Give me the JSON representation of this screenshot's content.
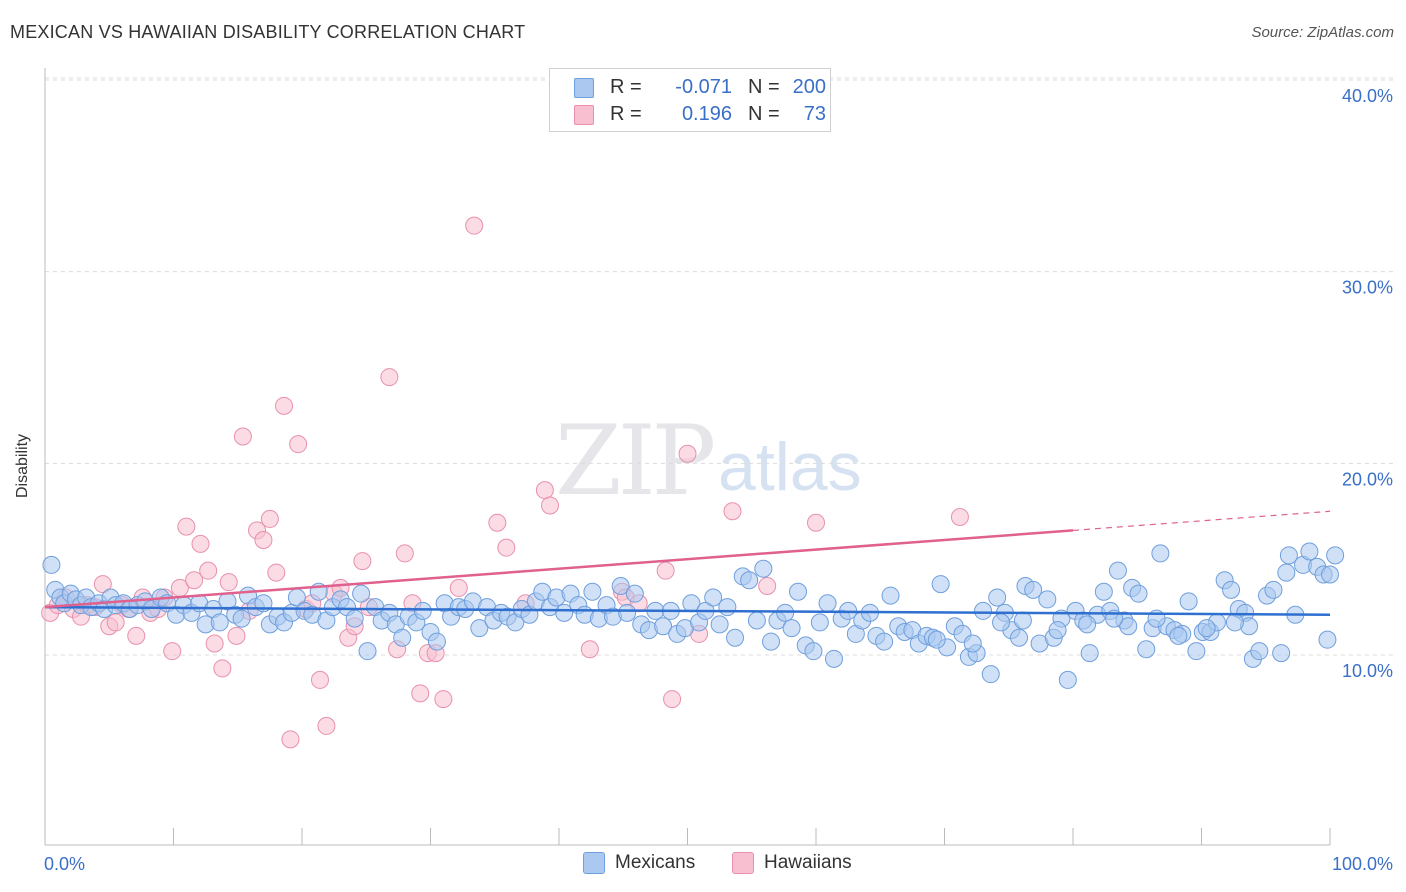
{
  "header": {
    "title": "MEXICAN VS HAWAIIAN DISABILITY CORRELATION CHART",
    "source": "Source: ZipAtlas.com"
  },
  "watermark": {
    "zip": "ZIP",
    "atlas": "atlas"
  },
  "legend": {
    "rows": [
      {
        "r_label": "R =",
        "r_value": "-0.071",
        "n_label": "N =",
        "n_value": "200",
        "color": "#aac8f0",
        "border": "#6f9fdc"
      },
      {
        "r_label": "R =",
        "r_value": "0.196",
        "n_label": "N =",
        "n_value": "73",
        "color": "#f7bfd0",
        "border": "#e890ad"
      }
    ]
  },
  "bottom_legend": {
    "mexicans": "Mexicans",
    "hawaiians": "Hawaiians"
  },
  "chart_data": {
    "type": "scatter",
    "title": "MEXICAN VS HAWAIIAN DISABILITY CORRELATION CHART",
    "xlabel": "",
    "ylabel": "Disability",
    "xlim": [
      0,
      100
    ],
    "ylim": [
      0,
      41
    ],
    "x_tick_labels": [
      "0.0%",
      "100.0%"
    ],
    "y_ticks": [
      10,
      20,
      30,
      40
    ],
    "y_tick_labels": [
      "10.0%",
      "20.0%",
      "30.0%",
      "40.0%"
    ],
    "grid": true,
    "legend_position": "top-center",
    "colors": {
      "mexicans": "#6f9fdc",
      "mexicans_fill": "#aac8f0",
      "hawaiians": "#e890ad",
      "hawaiians_fill": "#f7bfd0",
      "mexicans_trend": "#2e6fd0",
      "hawaiians_trend": "#e0608e"
    },
    "series": [
      {
        "name": "Mexicans",
        "trend": {
          "x": [
            0,
            100
          ],
          "y": [
            12.5,
            12.1
          ]
        },
        "points": [
          [
            0.5,
            14.7
          ],
          [
            0.8,
            13.4
          ],
          [
            1.2,
            13.0
          ],
          [
            1.5,
            12.7
          ],
          [
            2,
            13.2
          ],
          [
            2.4,
            12.9
          ],
          [
            2.8,
            12.6
          ],
          [
            3.2,
            13.0
          ],
          [
            3.6,
            12.5
          ],
          [
            4.2,
            12.7
          ],
          [
            4.6,
            12.4
          ],
          [
            5.1,
            13.0
          ],
          [
            5.5,
            12.6
          ],
          [
            6.1,
            12.7
          ],
          [
            6.6,
            12.4
          ],
          [
            7.2,
            12.6
          ],
          [
            7.8,
            12.8
          ],
          [
            8.3,
            12.4
          ],
          [
            9,
            13.0
          ],
          [
            9.5,
            12.7
          ],
          [
            10.2,
            12.1
          ],
          [
            10.8,
            12.6
          ],
          [
            11.4,
            12.2
          ],
          [
            12,
            12.7
          ],
          [
            12.5,
            11.6
          ],
          [
            13.1,
            12.4
          ],
          [
            13.6,
            11.7
          ],
          [
            14.2,
            12.8
          ],
          [
            14.8,
            12.1
          ],
          [
            15.3,
            11.9
          ],
          [
            15.8,
            13.1
          ],
          [
            16.4,
            12.5
          ],
          [
            17,
            12.7
          ],
          [
            17.5,
            11.6
          ],
          [
            18.1,
            12.0
          ],
          [
            18.6,
            11.7
          ],
          [
            19.2,
            12.2
          ],
          [
            19.6,
            13.0
          ],
          [
            20.2,
            12.3
          ],
          [
            20.8,
            12.1
          ],
          [
            21.3,
            13.3
          ],
          [
            21.9,
            11.8
          ],
          [
            22.4,
            12.5
          ],
          [
            23,
            12.9
          ],
          [
            23.5,
            12.5
          ],
          [
            24.1,
            11.9
          ],
          [
            24.6,
            13.2
          ],
          [
            25.1,
            10.2
          ],
          [
            25.7,
            12.5
          ],
          [
            26.2,
            11.8
          ],
          [
            26.8,
            12.2
          ],
          [
            27.3,
            11.6
          ],
          [
            27.8,
            10.9
          ],
          [
            28.3,
            12.0
          ],
          [
            28.9,
            11.7
          ],
          [
            29.4,
            12.3
          ],
          [
            30,
            11.2
          ],
          [
            30.5,
            10.7
          ],
          [
            31.1,
            12.7
          ],
          [
            31.6,
            12.0
          ],
          [
            32.2,
            12.5
          ],
          [
            32.7,
            12.4
          ],
          [
            33.3,
            12.8
          ],
          [
            33.8,
            11.4
          ],
          [
            34.4,
            12.5
          ],
          [
            34.9,
            11.8
          ],
          [
            35.5,
            12.2
          ],
          [
            36,
            12.0
          ],
          [
            36.6,
            11.7
          ],
          [
            37.1,
            12.4
          ],
          [
            37.7,
            12.1
          ],
          [
            38.2,
            12.8
          ],
          [
            38.7,
            13.3
          ],
          [
            39.3,
            12.5
          ],
          [
            39.8,
            13.0
          ],
          [
            40.4,
            12.2
          ],
          [
            40.9,
            13.2
          ],
          [
            41.5,
            12.6
          ],
          [
            42,
            12.1
          ],
          [
            42.6,
            13.3
          ],
          [
            43.1,
            11.9
          ],
          [
            43.7,
            12.6
          ],
          [
            44.2,
            12.0
          ],
          [
            44.8,
            13.6
          ],
          [
            45.3,
            12.2
          ],
          [
            45.9,
            13.2
          ],
          [
            46.4,
            11.6
          ],
          [
            47,
            11.3
          ],
          [
            47.5,
            12.3
          ],
          [
            48.1,
            11.5
          ],
          [
            48.7,
            12.3
          ],
          [
            49.2,
            11.1
          ],
          [
            49.8,
            11.4
          ],
          [
            50.3,
            12.7
          ],
          [
            50.9,
            11.7
          ],
          [
            51.4,
            12.3
          ],
          [
            52,
            13.0
          ],
          [
            52.5,
            11.6
          ],
          [
            53.1,
            12.5
          ],
          [
            53.7,
            10.9
          ],
          [
            54.3,
            14.1
          ],
          [
            54.8,
            13.9
          ],
          [
            55.4,
            11.8
          ],
          [
            55.9,
            14.5
          ],
          [
            56.5,
            10.7
          ],
          [
            57,
            11.8
          ],
          [
            57.6,
            12.2
          ],
          [
            58.1,
            11.4
          ],
          [
            58.6,
            13.3
          ],
          [
            59.2,
            10.5
          ],
          [
            59.8,
            10.2
          ],
          [
            60.3,
            11.7
          ],
          [
            60.9,
            12.7
          ],
          [
            61.4,
            9.8
          ],
          [
            62,
            11.9
          ],
          [
            62.5,
            12.3
          ],
          [
            63.1,
            11.1
          ],
          [
            63.6,
            11.8
          ],
          [
            64.2,
            12.2
          ],
          [
            64.7,
            11.0
          ],
          [
            65.3,
            10.7
          ],
          [
            65.8,
            13.1
          ],
          [
            66.4,
            11.5
          ],
          [
            66.9,
            11.2
          ],
          [
            67.5,
            11.3
          ],
          [
            68,
            10.6
          ],
          [
            68.6,
            11.0
          ],
          [
            69.1,
            10.9
          ],
          [
            69.7,
            13.7
          ],
          [
            70.2,
            10.4
          ],
          [
            70.8,
            11.5
          ],
          [
            71.4,
            11.1
          ],
          [
            71.9,
            9.9
          ],
          [
            72.5,
            10.1
          ],
          [
            73,
            12.3
          ],
          [
            73.6,
            9.0
          ],
          [
            74.1,
            13.0
          ],
          [
            74.7,
            12.2
          ],
          [
            75.2,
            11.3
          ],
          [
            75.8,
            10.9
          ],
          [
            76.3,
            13.6
          ],
          [
            76.9,
            13.4
          ],
          [
            77.4,
            10.6
          ],
          [
            78,
            12.9
          ],
          [
            78.5,
            10.9
          ],
          [
            79.1,
            11.9
          ],
          [
            79.6,
            8.7
          ],
          [
            80.2,
            12.3
          ],
          [
            80.8,
            11.8
          ],
          [
            81.3,
            10.1
          ],
          [
            81.9,
            12.1
          ],
          [
            82.4,
            13.3
          ],
          [
            82.9,
            12.3
          ],
          [
            83.5,
            14.4
          ],
          [
            84,
            11.8
          ],
          [
            84.6,
            13.5
          ],
          [
            85.1,
            13.2
          ],
          [
            85.7,
            10.3
          ],
          [
            86.2,
            11.4
          ],
          [
            86.8,
            15.3
          ],
          [
            87.3,
            11.5
          ],
          [
            87.9,
            11.3
          ],
          [
            88.5,
            11.1
          ],
          [
            89,
            12.8
          ],
          [
            89.6,
            10.2
          ],
          [
            90.1,
            11.2
          ],
          [
            90.7,
            11.2
          ],
          [
            91.2,
            11.7
          ],
          [
            91.8,
            13.9
          ],
          [
            92.3,
            13.4
          ],
          [
            92.9,
            12.4
          ],
          [
            93.4,
            12.2
          ],
          [
            94,
            9.8
          ],
          [
            94.5,
            10.2
          ],
          [
            95.1,
            13.1
          ],
          [
            95.6,
            13.4
          ],
          [
            96.2,
            10.1
          ],
          [
            96.8,
            15.2
          ],
          [
            97.3,
            12.1
          ],
          [
            97.9,
            14.7
          ],
          [
            98.4,
            15.4
          ],
          [
            99,
            14.6
          ],
          [
            99.5,
            14.2
          ],
          [
            100,
            14.2
          ],
          [
            100.4,
            15.2
          ],
          [
            99.8,
            10.8
          ],
          [
            96.6,
            14.3
          ],
          [
            93.7,
            11.5
          ],
          [
            92.6,
            11.7
          ],
          [
            90.4,
            11.4
          ],
          [
            88.2,
            11.0
          ],
          [
            86.5,
            11.9
          ],
          [
            84.3,
            11.5
          ],
          [
            83.2,
            11.9
          ],
          [
            81.1,
            11.6
          ],
          [
            78.8,
            11.3
          ],
          [
            76.1,
            11.8
          ],
          [
            74.4,
            11.7
          ],
          [
            72.2,
            10.6
          ],
          [
            69.4,
            10.8
          ]
        ]
      },
      {
        "name": "Hawaiians",
        "trend": {
          "x": [
            0,
            80
          ],
          "y": [
            12.5,
            16.5
          ]
        },
        "trend_dashed": {
          "x": [
            80,
            100
          ],
          "y": [
            16.5,
            17.5
          ]
        },
        "points": [
          [
            0.4,
            12.2
          ],
          [
            1,
            12.6
          ],
          [
            1.6,
            13.0
          ],
          [
            2.2,
            12.4
          ],
          [
            2.8,
            12.0
          ],
          [
            3.3,
            12.6
          ],
          [
            3.9,
            12.5
          ],
          [
            4.5,
            13.7
          ],
          [
            5,
            11.5
          ],
          [
            5.5,
            11.7
          ],
          [
            6,
            12.6
          ],
          [
            6.5,
            12.4
          ],
          [
            7.1,
            11.0
          ],
          [
            7.6,
            13.0
          ],
          [
            8.2,
            12.2
          ],
          [
            8.8,
            12.4
          ],
          [
            9.3,
            13.0
          ],
          [
            9.9,
            10.2
          ],
          [
            10.5,
            13.5
          ],
          [
            11,
            16.7
          ],
          [
            11.6,
            13.9
          ],
          [
            12.1,
            15.8
          ],
          [
            12.7,
            14.4
          ],
          [
            13.2,
            10.6
          ],
          [
            13.8,
            9.3
          ],
          [
            14.3,
            13.8
          ],
          [
            14.9,
            11.0
          ],
          [
            15.4,
            21.4
          ],
          [
            15.9,
            12.3
          ],
          [
            16.5,
            16.5
          ],
          [
            17,
            16.0
          ],
          [
            17.5,
            17.1
          ],
          [
            18,
            14.3
          ],
          [
            18.6,
            23.0
          ],
          [
            19.1,
            5.6
          ],
          [
            19.7,
            21.0
          ],
          [
            20.3,
            12.4
          ],
          [
            20.8,
            12.7
          ],
          [
            21.4,
            8.7
          ],
          [
            21.9,
            6.3
          ],
          [
            22.5,
            13.2
          ],
          [
            23,
            13.5
          ],
          [
            23.6,
            10.9
          ],
          [
            24.1,
            11.5
          ],
          [
            24.7,
            14.9
          ],
          [
            25.2,
            12.5
          ],
          [
            26.8,
            24.5
          ],
          [
            27.4,
            10.3
          ],
          [
            28,
            15.3
          ],
          [
            28.6,
            12.7
          ],
          [
            29.2,
            8.0
          ],
          [
            29.8,
            10.1
          ],
          [
            30.4,
            10.1
          ],
          [
            31,
            7.7
          ],
          [
            32.2,
            13.5
          ],
          [
            33.4,
            32.4
          ],
          [
            35.2,
            16.9
          ],
          [
            35.9,
            15.6
          ],
          [
            37.4,
            12.7
          ],
          [
            38.9,
            18.6
          ],
          [
            39.3,
            17.8
          ],
          [
            42.4,
            10.3
          ],
          [
            44.9,
            13.3
          ],
          [
            45.2,
            13.0
          ],
          [
            46.2,
            12.7
          ],
          [
            48.3,
            14.4
          ],
          [
            48.8,
            7.7
          ],
          [
            50,
            20.5
          ],
          [
            50.9,
            11.1
          ],
          [
            53.5,
            17.5
          ],
          [
            56.2,
            13.6
          ],
          [
            60,
            16.9
          ],
          [
            71.2,
            17.2
          ]
        ]
      }
    ]
  }
}
